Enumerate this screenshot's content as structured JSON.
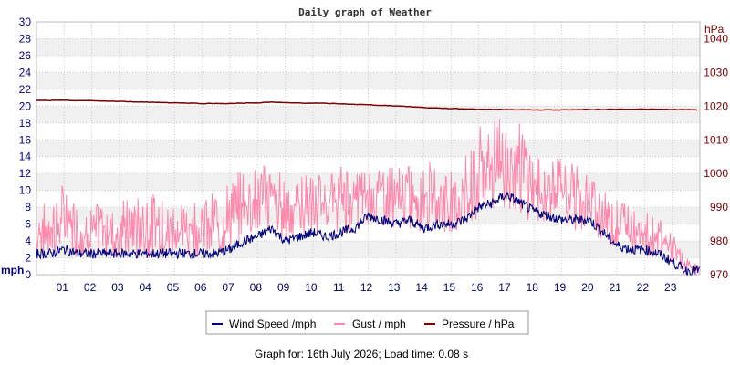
{
  "chart_data": {
    "type": "line",
    "title": "Daily graph of Weather",
    "footer": "Graph for: 16th July 2026; Load time: 0.08 s",
    "x_ticks": [
      "01",
      "02",
      "03",
      "04",
      "05",
      "06",
      "07",
      "08",
      "09",
      "10",
      "11",
      "12",
      "13",
      "14",
      "15",
      "16",
      "17",
      "18",
      "19",
      "20",
      "21",
      "22",
      "23"
    ],
    "x_range_hours": [
      0,
      24
    ],
    "y_left": {
      "unit": "mph",
      "range": [
        0,
        30
      ],
      "ticks": [
        "0",
        "2",
        "4",
        "6",
        "8",
        "10",
        "12",
        "14",
        "16",
        "18",
        "20",
        "22",
        "24",
        "26",
        "28",
        "30"
      ]
    },
    "y_right": {
      "unit": "hPa",
      "range": [
        970,
        1045
      ],
      "ticks": [
        "970",
        "980",
        "990",
        "1000",
        "1010",
        "1020",
        "1030",
        "1040"
      ]
    },
    "grid": "horizontal bands alternating white/light gray, with dotted horizontal and vertical gridlines",
    "legend_placement": "bottom",
    "series": [
      {
        "name": "Wind Speed /mph",
        "color": "#00007a",
        "axis": "left",
        "x": [
          0,
          0.5,
          1,
          1.5,
          2,
          2.5,
          3,
          3.5,
          4,
          4.5,
          5,
          5.5,
          6,
          6.5,
          7,
          7.5,
          8,
          8.5,
          9,
          9.5,
          10,
          10.5,
          11,
          11.5,
          12,
          12.5,
          13,
          13.5,
          14,
          14.5,
          15,
          15.5,
          16,
          16.5,
          17,
          17.5,
          18,
          18.5,
          19,
          19.5,
          20,
          20.5,
          21,
          21.5,
          22,
          22.5,
          23,
          23.5,
          24
        ],
        "values": [
          2.5,
          2.5,
          3,
          2.5,
          2.5,
          2.5,
          2.5,
          2.5,
          2.5,
          2.5,
          2.5,
          2.5,
          2.5,
          2.5,
          3,
          4,
          4.5,
          5.5,
          4,
          4.5,
          5,
          4.5,
          5,
          5.5,
          7,
          6.5,
          6,
          6.5,
          5.5,
          6,
          6,
          6.5,
          8,
          8.5,
          9.5,
          8.5,
          7.5,
          7,
          6.5,
          6.5,
          6.5,
          5,
          3.5,
          3,
          3,
          2.5,
          1.5,
          0.5,
          0.5
        ]
      },
      {
        "name": "Gust / mph",
        "color": "#ff88aa",
        "axis": "left",
        "x": [
          0,
          0.5,
          1,
          1.5,
          2,
          2.5,
          3,
          3.5,
          4,
          4.5,
          5,
          5.5,
          6,
          6.5,
          7,
          7.5,
          8,
          8.5,
          9,
          9.5,
          10,
          10.5,
          11,
          11.5,
          12,
          12.5,
          13,
          13.5,
          14,
          14.5,
          15,
          15.5,
          16,
          16.5,
          17,
          17.5,
          18,
          18.5,
          19,
          19.5,
          20,
          20.5,
          21,
          21.5,
          22,
          22.5,
          23,
          23.5,
          24
        ],
        "values": [
          8,
          9,
          11,
          8,
          8,
          9,
          9,
          9,
          10,
          9,
          9,
          9,
          9,
          10,
          11,
          13,
          13,
          13,
          12,
          12,
          12,
          12,
          13,
          13,
          13,
          13,
          13,
          13,
          14,
          13,
          13,
          14,
          18,
          18,
          20,
          18,
          14,
          14,
          14,
          13,
          12,
          10,
          9,
          9,
          8,
          7,
          5,
          2,
          1
        ],
        "min_values": [
          2,
          2,
          3,
          2,
          2,
          2,
          2,
          2,
          2,
          2,
          2,
          2,
          2,
          2,
          3,
          4,
          5,
          5,
          4,
          4,
          5,
          5,
          5,
          5,
          6,
          6,
          5,
          5,
          5,
          5,
          5,
          5,
          6,
          7,
          8,
          7,
          6,
          6,
          6,
          5,
          5,
          4,
          3,
          3,
          2,
          2,
          1,
          0,
          0
        ]
      },
      {
        "name": "Pressure / hPa",
        "color": "#7a0000",
        "axis": "right",
        "x": [
          0,
          1,
          2,
          3,
          4,
          5,
          6,
          7,
          8,
          8.5,
          9,
          10,
          11,
          12,
          13,
          14,
          15,
          16,
          17,
          18,
          19,
          20,
          21,
          22,
          23,
          24
        ],
        "values": [
          1021.7,
          1021.7,
          1021.6,
          1021.4,
          1021.2,
          1021,
          1020.8,
          1020.8,
          1021,
          1021.2,
          1021,
          1020.9,
          1020.7,
          1020.4,
          1020.1,
          1019.6,
          1019.3,
          1019.1,
          1019,
          1018.9,
          1018.9,
          1019,
          1019.1,
          1019.1,
          1019,
          1018.9
        ]
      }
    ]
  }
}
